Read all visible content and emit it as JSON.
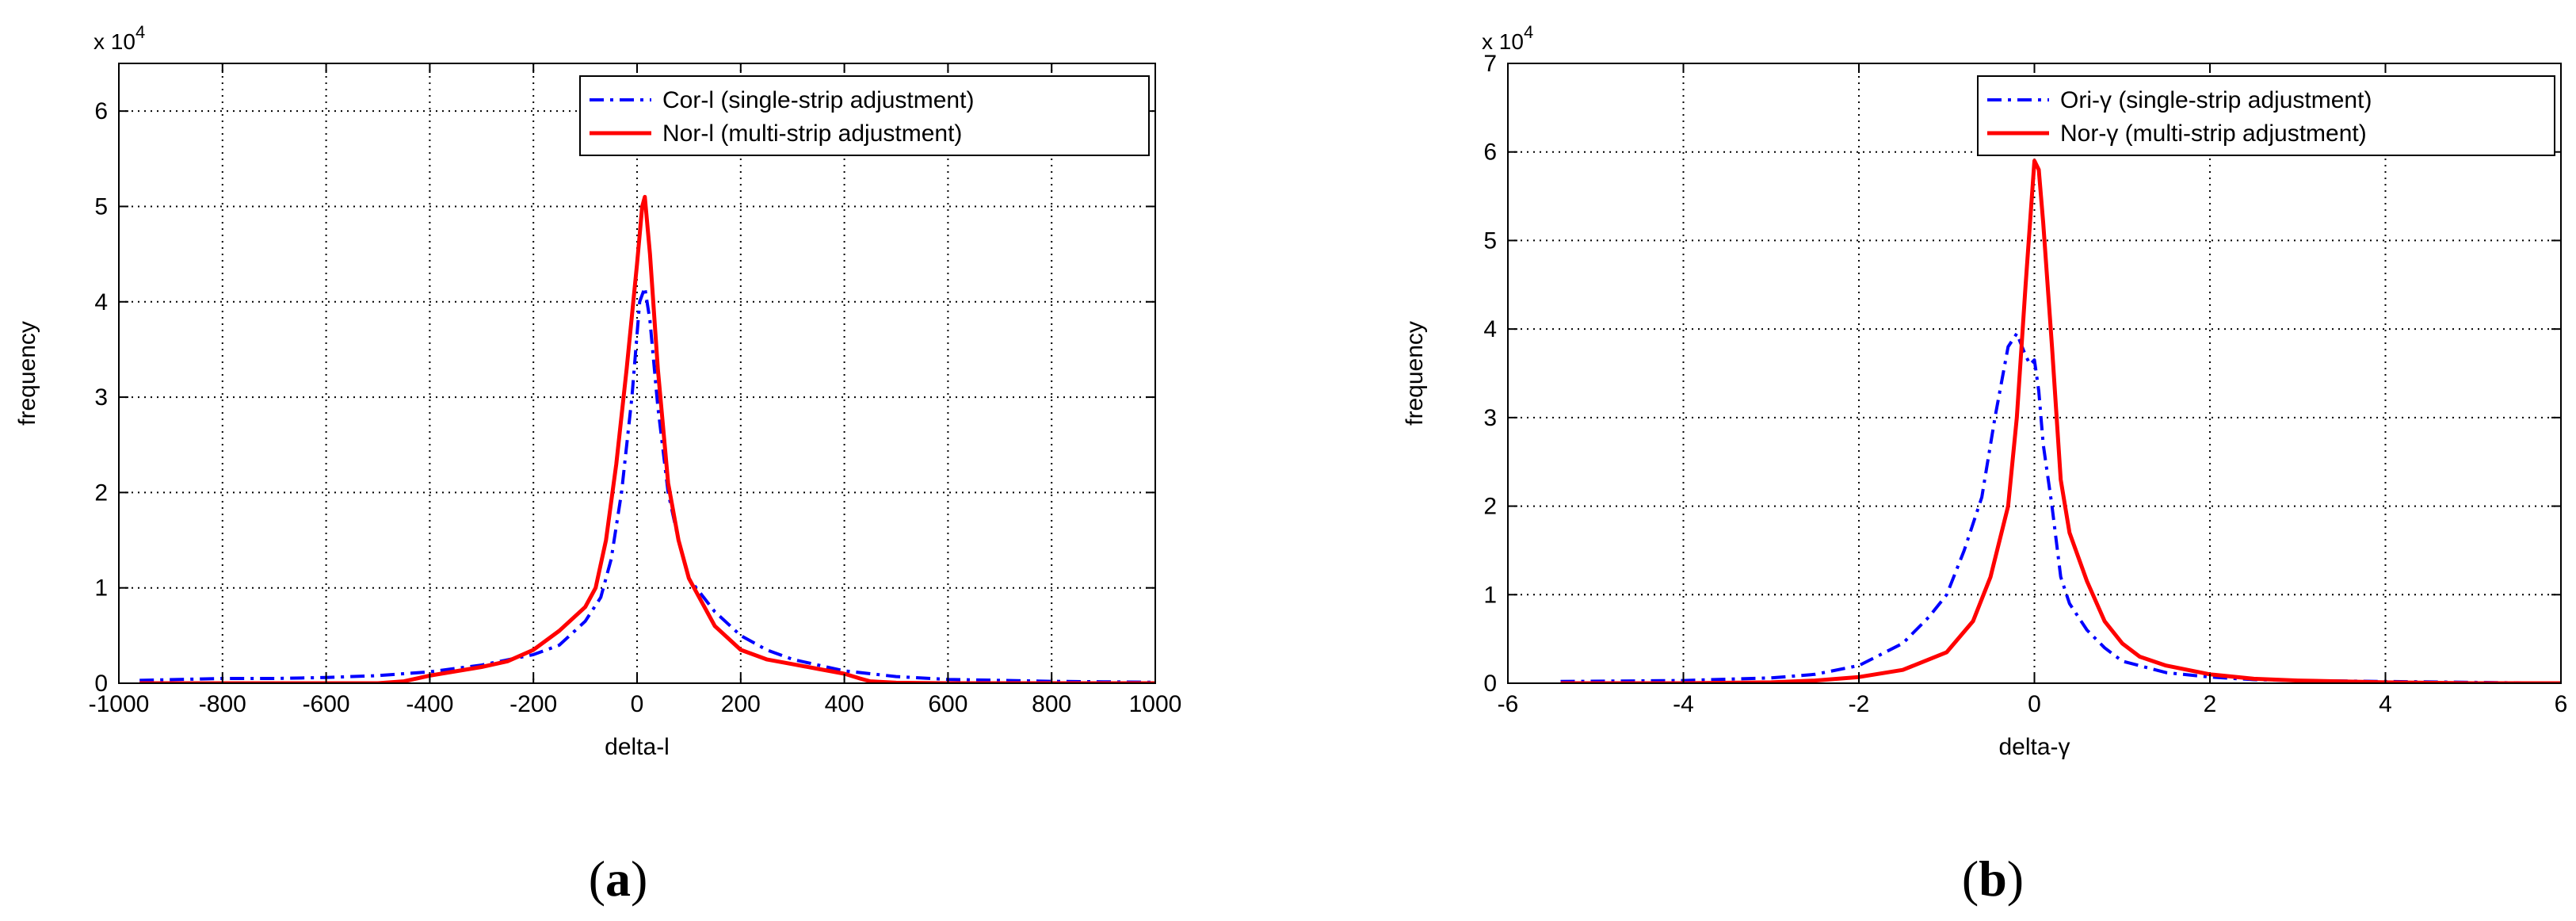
{
  "chart_data": [
    {
      "type": "line",
      "panel_label": "a",
      "xlabel": "delta-l",
      "ylabel": "frequency",
      "y_exponent_label": "x 10",
      "y_exponent_power": "4",
      "xlim": [
        -1000,
        1000
      ],
      "ylim": [
        0,
        65000
      ],
      "xticks": [
        -1000,
        -800,
        -600,
        -400,
        -200,
        0,
        200,
        400,
        600,
        800,
        1000
      ],
      "yticks": [
        0,
        10000,
        20000,
        30000,
        40000,
        50000,
        60000
      ],
      "ytick_labels": [
        "0",
        "1",
        "2",
        "3",
        "4",
        "5",
        "6"
      ],
      "grid": true,
      "legend_position": "top-right",
      "series": [
        {
          "name": "Cor-l (single-strip adjustment)",
          "color": "#0000ff",
          "style": "dashdot",
          "x": [
            -960,
            -800,
            -700,
            -600,
            -500,
            -400,
            -300,
            -200,
            -150,
            -100,
            -70,
            -50,
            -30,
            -10,
            5,
            15,
            25,
            40,
            60,
            80,
            100,
            150,
            200,
            250,
            300,
            400,
            500,
            600,
            700,
            800,
            900,
            1000
          ],
          "y": [
            300,
            500,
            500,
            600,
            800,
            1200,
            1900,
            3000,
            4000,
            6500,
            9000,
            13000,
            20000,
            30000,
            40000,
            41500,
            38000,
            29000,
            20000,
            15000,
            11000,
            7500,
            5000,
            3500,
            2500,
            1300,
            700,
            400,
            300,
            200,
            150,
            100
          ]
        },
        {
          "name": "Nor-l (multi-strip adjustment)",
          "color": "#ff0000",
          "style": "solid",
          "x": [
            -960,
            -800,
            -600,
            -500,
            -450,
            -400,
            -300,
            -250,
            -200,
            -150,
            -100,
            -80,
            -60,
            -40,
            -20,
            0,
            10,
            15,
            25,
            40,
            60,
            80,
            100,
            150,
            200,
            250,
            300,
            350,
            400,
            430,
            450,
            500,
            600,
            800,
            1000
          ],
          "y": [
            0,
            0,
            0,
            0,
            200,
            800,
            1700,
            2300,
            3500,
            5500,
            8000,
            10000,
            15000,
            23000,
            33000,
            44000,
            50000,
            51000,
            45000,
            33000,
            21000,
            15000,
            11000,
            6000,
            3500,
            2500,
            2000,
            1500,
            1000,
            500,
            200,
            50,
            0,
            0,
            0
          ]
        }
      ]
    },
    {
      "type": "line",
      "panel_label": "b",
      "xlabel": "delta-γ",
      "ylabel": "frequency",
      "y_exponent_label": "x 10",
      "y_exponent_power": "4",
      "xlim": [
        -6,
        6
      ],
      "ylim": [
        0,
        70000
      ],
      "xticks": [
        -6,
        -4,
        -2,
        0,
        2,
        4,
        6
      ],
      "yticks": [
        0,
        10000,
        20000,
        30000,
        40000,
        50000,
        60000,
        70000
      ],
      "ytick_labels": [
        "0",
        "1",
        "2",
        "3",
        "4",
        "5",
        "6",
        "7"
      ],
      "grid": true,
      "legend_position": "top-right",
      "series": [
        {
          "name": "Ori-γ (single-strip adjustment)",
          "color": "#0000ff",
          "style": "dashdot",
          "x": [
            -5.4,
            -4,
            -3,
            -2.5,
            -2,
            -1.5,
            -1.2,
            -1,
            -0.8,
            -0.6,
            -0.45,
            -0.3,
            -0.2,
            -0.1,
            -0.05,
            0,
            0.05,
            0.1,
            0.2,
            0.3,
            0.4,
            0.6,
            0.8,
            1,
            1.5,
            2,
            2.5,
            3,
            4,
            5,
            6
          ],
          "y": [
            200,
            300,
            600,
            1000,
            2000,
            4500,
            7500,
            10000,
            15000,
            21000,
            30000,
            38000,
            39500,
            37000,
            36000,
            36500,
            33000,
            27000,
            20000,
            12000,
            9000,
            6000,
            4000,
            2500,
            1200,
            700,
            400,
            300,
            200,
            100,
            0
          ]
        },
        {
          "name": "Nor-γ (multi-strip adjustment)",
          "color": "#ff0000",
          "style": "solid",
          "x": [
            -5.4,
            -4,
            -3,
            -2.5,
            -2,
            -1.5,
            -1,
            -0.7,
            -0.5,
            -0.3,
            -0.2,
            -0.1,
            0,
            0.05,
            0.1,
            0.2,
            0.3,
            0.4,
            0.6,
            0.8,
            1,
            1.2,
            1.5,
            2,
            2.5,
            3,
            4,
            5,
            6
          ],
          "y": [
            0,
            0,
            100,
            300,
            700,
            1500,
            3500,
            7000,
            12000,
            20000,
            30000,
            45000,
            59000,
            58000,
            52000,
            38000,
            23000,
            17000,
            11500,
            7000,
            4500,
            3000,
            2000,
            1000,
            500,
            300,
            100,
            0,
            0
          ]
        }
      ]
    }
  ]
}
